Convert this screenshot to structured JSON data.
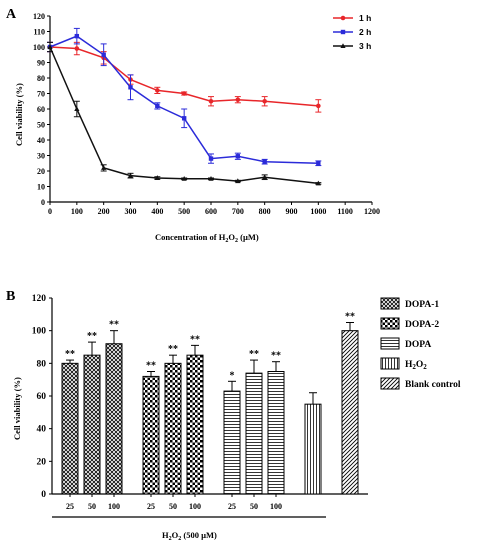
{
  "chart_data": [
    {
      "type": "line",
      "panel": "A",
      "xlabel_main": "Concentration of H",
      "xlabel_sub": "2",
      "xlabel_tail": "O",
      "xlabel_sub2": "2",
      "xlabel_end": " (µM)",
      "ylabel": "Cell viability (%)",
      "xlim": [
        0,
        1200
      ],
      "ylim": [
        0,
        120
      ],
      "xticks": [
        "0",
        "100",
        "200",
        "300",
        "400",
        "500",
        "600",
        "700",
        "800",
        "900",
        "1000",
        "1100",
        "1200"
      ],
      "yticks": [
        "0",
        "10",
        "20",
        "30",
        "40",
        "50",
        "60",
        "70",
        "80",
        "90",
        "100",
        "110",
        "120"
      ],
      "legend_position": "top-right",
      "x": [
        0,
        100,
        200,
        300,
        400,
        500,
        600,
        700,
        800,
        1000
      ],
      "series": [
        {
          "name": "1 h",
          "color": "#e8262a",
          "marker": "circle",
          "values": [
            100,
            99,
            93,
            79,
            72,
            70,
            65,
            66,
            65,
            62
          ],
          "errors": [
            3,
            4,
            4,
            3,
            2,
            1,
            3,
            2,
            3,
            4
          ]
        },
        {
          "name": "2 h",
          "color": "#2b2bd9",
          "marker": "square",
          "values": [
            100,
            107,
            95,
            74,
            62,
            54,
            28,
            29.5,
            26,
            25
          ],
          "errors": [
            3,
            5,
            7,
            8,
            2,
            6,
            3,
            2,
            1.5,
            1.5
          ]
        },
        {
          "name": "3 h",
          "color": "#111111",
          "marker": "triangle",
          "values": [
            100,
            60,
            22,
            17,
            15.5,
            15,
            15,
            13.5,
            16,
            12
          ],
          "errors": [
            3,
            5,
            2,
            1.5,
            0.8,
            0.5,
            0.5,
            0.5,
            1.5,
            0.5
          ]
        }
      ]
    },
    {
      "type": "bar",
      "panel": "B",
      "ylabel": "Cell viability (%)",
      "ylim": [
        0,
        120
      ],
      "yticks": [
        "0",
        "20",
        "40",
        "60",
        "80",
        "100",
        "120"
      ],
      "xlabel_main": "H",
      "xlabel_sub": "2",
      "xlabel_tail": "O",
      "xlabel_sub2": "2",
      "xlabel_end": " (500 µM)",
      "categories": [
        "25",
        "50",
        "100",
        "25",
        "50",
        "100",
        "25",
        "50",
        "100",
        "",
        ""
      ],
      "groups": [
        "DOPA-1",
        "DOPA-1",
        "DOPA-1",
        "DOPA-2",
        "DOPA-2",
        "DOPA-2",
        "DOPA",
        "DOPA",
        "DOPA",
        "H2O2",
        "Blank control"
      ],
      "values": [
        80,
        85,
        92,
        72,
        80,
        85,
        63,
        74,
        75,
        55,
        100
      ],
      "errors": [
        2,
        8,
        8,
        3,
        5,
        6,
        6,
        8,
        6,
        7,
        5
      ],
      "significance": [
        "**",
        "**",
        "**",
        "**",
        "**",
        "**",
        "*",
        "**",
        "**",
        "",
        "**"
      ],
      "legend": [
        {
          "label": "DOPA-1",
          "pattern": "crosshatch"
        },
        {
          "label": "DOPA-2",
          "pattern": "checker"
        },
        {
          "label": "DOPA",
          "pattern": "horizontal"
        },
        {
          "label_main": "H",
          "label_sub": "2",
          "label_tail": "O",
          "label_sub2": "2",
          "pattern": "vertical"
        },
        {
          "label": "Blank control",
          "pattern": "diagonal"
        }
      ],
      "legend_position": "right"
    }
  ]
}
